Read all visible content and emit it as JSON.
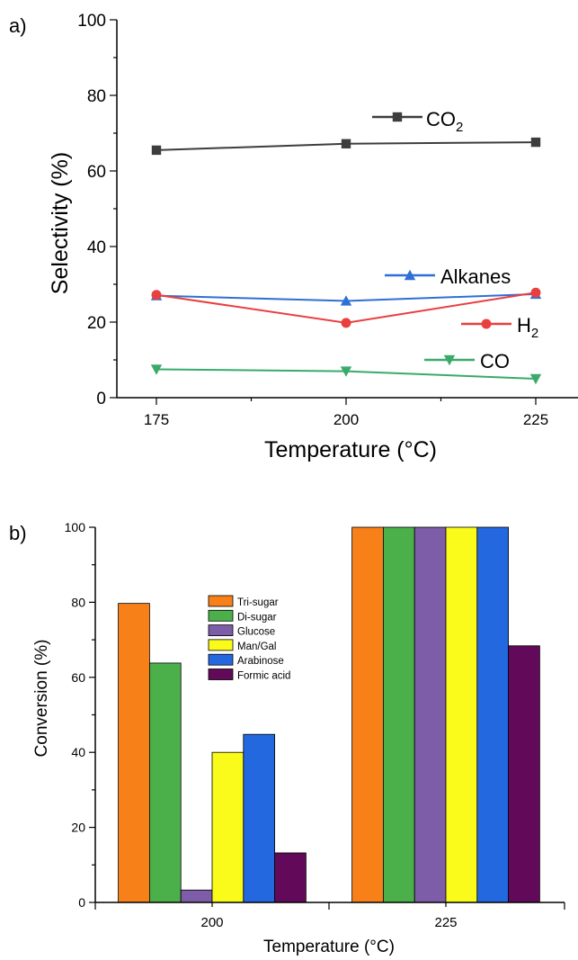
{
  "chart_data": [
    {
      "panel_label": "a)",
      "type": "line",
      "xlabel": "Temperature (°C)",
      "ylabel": "Selectivity (%)",
      "x": [
        175,
        200,
        225
      ],
      "x_tick_labels": [
        "175",
        "200",
        "225"
      ],
      "xlim": [
        165,
        232
      ],
      "ylim": [
        0,
        100
      ],
      "y_tick_labels": [
        "0",
        "20",
        "40",
        "60",
        "80",
        "100"
      ],
      "grid": false,
      "series": [
        {
          "name": "CO",
          "sub": "2",
          "marker": "square",
          "color": "#3d3d3d",
          "values": [
            65.5,
            67.2,
            67.6
          ]
        },
        {
          "name": "Alkanes",
          "sub": "",
          "marker": "triangle-up",
          "color": "#2f6fd6",
          "values": [
            27.0,
            25.6,
            27.4
          ]
        },
        {
          "name": "H",
          "sub": "2",
          "marker": "circle",
          "color": "#e8403f",
          "values": [
            27.2,
            19.8,
            27.8
          ]
        },
        {
          "name": "CO",
          "sub": "",
          "marker": "triangle-down",
          "color": "#3aaa6b",
          "values": [
            7.5,
            7.0,
            5.0
          ]
        }
      ]
    },
    {
      "panel_label": "b)",
      "type": "bar",
      "xlabel": "Temperature (°C)",
      "ylabel": "Conversion (%)",
      "categories": [
        "200",
        "225"
      ],
      "ylim": [
        0,
        100
      ],
      "y_tick_labels": [
        "0",
        "20",
        "40",
        "60",
        "80",
        "100"
      ],
      "grid": false,
      "legend_position": "inside, upper-center",
      "series": [
        {
          "name": "Tri-sugar",
          "color": "#f78019",
          "values": [
            79.7,
            100
          ]
        },
        {
          "name": "Di-sugar",
          "color": "#4cb04a",
          "values": [
            63.8,
            100
          ]
        },
        {
          "name": "Glucose",
          "color": "#7d5ca8",
          "values": [
            3.3,
            100
          ]
        },
        {
          "name": "Man/Gal",
          "color": "#fbfb1b",
          "values": [
            40.0,
            100
          ]
        },
        {
          "name": "Arabinose",
          "color": "#2468e0",
          "values": [
            44.8,
            100
          ]
        },
        {
          "name": "Formic acid",
          "color": "#620a59",
          "values": [
            13.2,
            68.4
          ]
        }
      ]
    }
  ]
}
